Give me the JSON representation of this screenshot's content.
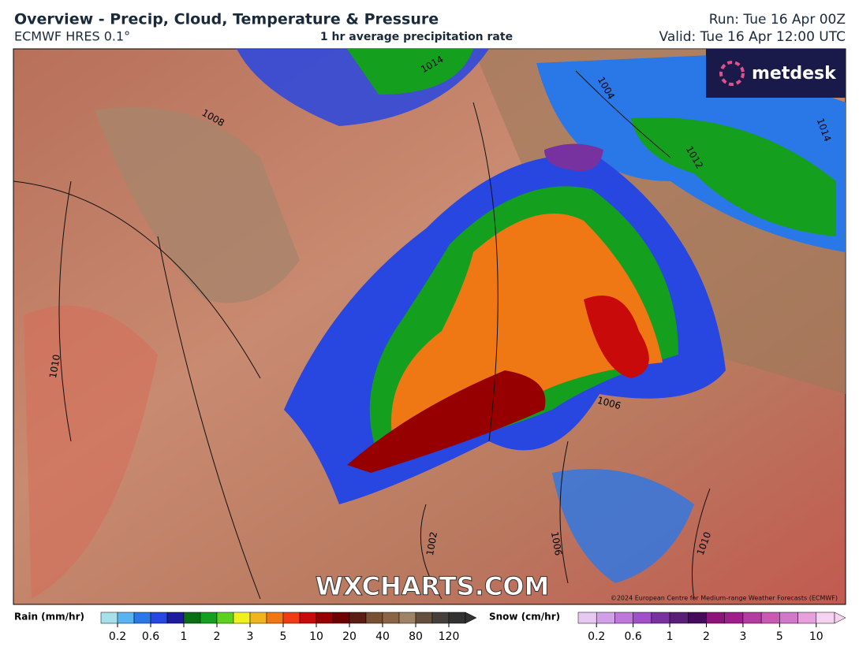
{
  "header": {
    "title": "Overview - Precip, Cloud, Temperature & Pressure",
    "model": "ECMWF HRES 0.1°",
    "subtitle": "1 hr average precipitation rate",
    "run": "Run: Tue 16 Apr 00Z",
    "valid": "Valid: Tue 16 Apr 12:00 UTC"
  },
  "logo": "metdesk",
  "watermark": "WXCHARTS.COM",
  "copyright": "©2024 European Centre for Medium-range Weather Forecasts (ECMWF)",
  "isobar_labels": [
    "1014",
    "1004",
    "1008",
    "1014",
    "1012",
    "1010",
    "1006",
    "1002",
    "1006",
    "1010"
  ],
  "legend": {
    "rain": {
      "label": "Rain (mm/hr)",
      "ticks": [
        "0.2",
        "0.6",
        "1",
        "2",
        "3",
        "5",
        "10",
        "20",
        "40",
        "80",
        "120"
      ],
      "colors": [
        "#a6e0ea",
        "#5ab4f0",
        "#2a78e8",
        "#2846e0",
        "#1c1c9c",
        "#0a6e14",
        "#14a01e",
        "#5cd21e",
        "#f0f01e",
        "#f0b41e",
        "#f07814",
        "#f03c14",
        "#c80a0a",
        "#960000",
        "#6e0000",
        "#5a1e14",
        "#785032",
        "#8c6446",
        "#a08264",
        "#64503c",
        "#46403c",
        "#323232"
      ]
    },
    "snow": {
      "label": "Snow (cm/hr)",
      "ticks": [
        "0.2",
        "0.6",
        "1",
        "2",
        "3",
        "5",
        "10"
      ],
      "colors": [
        "#e6c8f0",
        "#d2a0e6",
        "#be78dc",
        "#a050c8",
        "#7832a0",
        "#5a1e78",
        "#460a5a",
        "#8c1478",
        "#a01e8c",
        "#b43ca0",
        "#c85ab4",
        "#d278c8",
        "#e6a0dc",
        "#f5d2f0"
      ]
    }
  }
}
